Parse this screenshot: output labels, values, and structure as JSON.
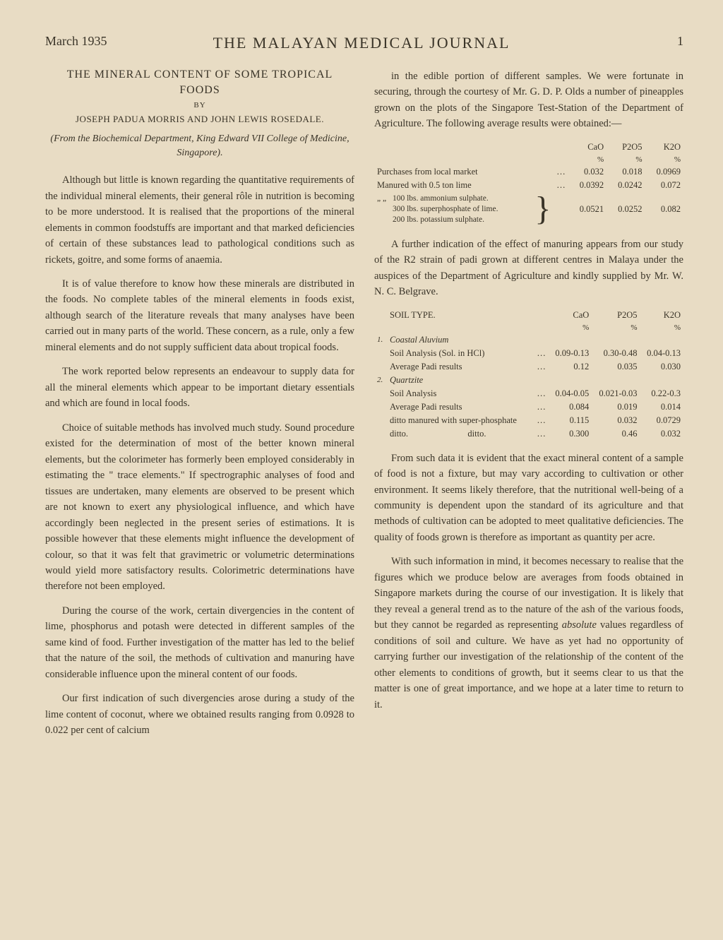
{
  "header": {
    "date": "March 1935",
    "journal": "THE MALAYAN MEDICAL JOURNAL",
    "page": "1"
  },
  "article": {
    "title_line1": "THE MINERAL CONTENT OF SOME TROPICAL",
    "title_line2": "FOODS",
    "by": "BY",
    "authors": "JOSEPH PADUA MORRIS AND JOHN LEWIS ROSEDALE.",
    "affiliation": "(From the Biochemical Department, King Edward VII College of Medicine, Singapore)."
  },
  "left_paragraphs": [
    "Although but little is known regarding the quantitative requirements of the individual mineral elements, their general rôle in nutrition is becoming to be more understood. It is realised that the proportions of the mineral elements in common foodstuffs are important and that marked deficiencies of certain of these substances lead to pathological conditions such as rickets, goitre, and some forms of anaemia.",
    "It is of value therefore to know how these minerals are distributed in the foods. No complete tables of the mineral elements in foods exist, although search of the literature reveals that many analyses have been carried out in many parts of the world. These concern, as a rule, only a few mineral elements and do not supply sufficient data about tropical foods.",
    "The work reported below represents an endeavour to supply data for all the mineral elements which appear to be important dietary essentials and which are found in local foods.",
    "Choice of suitable methods has involved much study. Sound procedure existed for the determination of most of the better known mineral elements, but the colorimeter has formerly been employed considerably in estimating the \" trace elements.\" If spectrographic analyses of food and tissues are undertaken, many elements are observed to be present which are not known to exert any physiological influence, and which have accordingly been neglected in the present series of estimations. It is possible however that these elements might influence the development of colour, so that it was felt that gravimetric or volumetric determinations would yield more satisfactory results. Colorimetric determinations have therefore not been employed.",
    "During the course of the work, certain divergencies in the content of lime, phosphorus and potash were detected in different samples of the same kind of food. Further investigation of the matter has led to the belief that the nature of the soil, the methods of cultivation and manuring have considerable influence upon the mineral content of our foods.",
    "Our first indication of such divergencies arose during a study of the lime content of coconut, where we obtained results ranging from 0.0928 to 0.022 per cent of calcium"
  ],
  "right": {
    "p1": "in the edible portion of different samples. We were fortunate in securing, through the courtesy of Mr. G. D. P. Olds a number of pineapples grown on the plots of the Singapore Test-Station of the Department of Agriculture. The following average results were obtained:—",
    "table1": {
      "headers": [
        "CaO",
        "P2O5",
        "K2O"
      ],
      "pct": "%",
      "rows": [
        {
          "label": "Purchases from local market",
          "dots": "…",
          "cao": "0.032",
          "p2o5": "0.018",
          "k2o": "0.0969"
        },
        {
          "label": "Manured with 0.5 ton lime",
          "dots": "…",
          "cao": "0.0392",
          "p2o5": "0.0242",
          "k2o": "0.072"
        }
      ],
      "brace_row": {
        "prefix": "„        „",
        "lines": "100 lbs. ammonium sulphate.\n300 lbs. superphosphate of lime.\n200 lbs. potassium sulphate.",
        "cao": "0.0521",
        "p2o5": "0.0252",
        "k2o": "0.082"
      }
    },
    "p2": "A further indication of the effect of manuring appears from our study of the R2 strain of padi grown at different centres in Malaya under the auspices of the Department of Agriculture and kindly supplied by Mr. W. N. C. Belgrave.",
    "table2": {
      "soil_header": "SOIL TYPE.",
      "headers": [
        "CaO",
        "P2O5",
        "K2O"
      ],
      "pct": "%",
      "group1": {
        "num": "1.",
        "title": "Coastal Aluvium",
        "rows": [
          {
            "label": "Soil Analysis (Sol. in HCl)",
            "dots": "…",
            "cao": "0.09-0.13",
            "p2o5": "0.30-0.48",
            "k2o": "0.04-0.13"
          },
          {
            "label": "Average Padi results",
            "dots": "…",
            "cao": "0.12",
            "p2o5": "0.035",
            "k2o": "0.030"
          }
        ]
      },
      "group2": {
        "num": "2.",
        "title": "Quartzite",
        "rows": [
          {
            "label": "Soil Analysis",
            "dots": "…",
            "cao": "0.04-0.05",
            "p2o5": "0.021-0.03",
            "k2o": "0.22-0.3"
          },
          {
            "label": "Average Padi results",
            "dots": "…",
            "cao": "0.084",
            "p2o5": "0.019",
            "k2o": "0.014"
          },
          {
            "label": "ditto manured with super-phosphate",
            "dots": "…",
            "cao": "0.115",
            "p2o5": "0.032",
            "k2o": "0.0729"
          },
          {
            "label": "ditto.                           ditto.",
            "dots": "…",
            "cao": "0.300",
            "p2o5": "0.46",
            "k2o": "0.032"
          }
        ]
      }
    },
    "p3": "From such data it is evident that the exact mineral content of a sample of food is not a fixture, but may vary according to cultivation or other environment. It seems likely therefore, that the nutritional well-being of a community is dependent upon the standard of its agriculture and that methods of cultivation can be adopted to meet qualitative deficiencies. The quality of foods grown is therefore as important as quantity per acre.",
    "p4_html": "With such information in mind, it becomes necessary to realise that the figures which we produce below are averages from foods obtained in Singapore markets during the course of our investigation. It is likely that they reveal a general trend as to the nature of the ash of the various foods, but they cannot be regarded as representing <em class='it'>absolute</em> values regardless of conditions of soil and culture. We have as yet had no opportunity of carrying further our investigation of the relationship of the content of the other elements to conditions of growth, but it seems clear to us that the matter is one of great importance, and we hope at a later time to return to it."
  }
}
